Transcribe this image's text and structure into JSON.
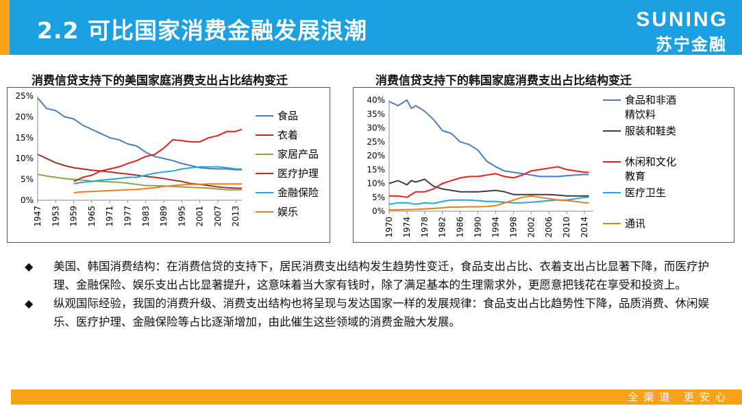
{
  "header": {
    "title": "2.2  可比国家消费金融发展浪潮"
  },
  "brand": {
    "name_en": "SUNING",
    "name_cn": "苏宁金融"
  },
  "footer": {
    "slogan": "全渠道  更安心"
  },
  "bullets": [
    "美国、韩国消费结构：在消费信贷的支持下，居民消费支出结构发生趋势性变迁，食品支出占比、衣着支出占比显著下降，而医疗护理、金融保险、娱乐支出占比显著提升，这意味着当大家有钱时，除了满足基本的生理需求外，更愿意把钱花在享受和投资上。",
    "纵观国际经验，我国的消费升级、消费支出结构也将呈现与发达国家一样的发展规律：食品支出占比趋势性下降，品质消费、休闲娱乐、医疗护理、金融保险等占比逐渐增加，由此催生这些领域的消费金融大发展。"
  ],
  "chart_data": [
    {
      "type": "line",
      "title": "消费信贷支持下的美国家庭消费支出占比结构变迁",
      "ylim": [
        0,
        25
      ],
      "y_ticks": [
        "0%",
        "5%",
        "10%",
        "15%",
        "20%",
        "25%"
      ],
      "x_ticks": [
        "1947",
        "1953",
        "1959",
        "1965",
        "1971",
        "1977",
        "1983",
        "1989",
        "1995",
        "2001",
        "2007",
        "2013"
      ],
      "series": [
        {
          "name": "食品",
          "color": "#4a7ebb",
          "x": [
            1947,
            1950,
            1953,
            1956,
            1959,
            1962,
            1965,
            1968,
            1971,
            1974,
            1977,
            1980,
            1983,
            1986,
            1989,
            1992,
            1995,
            1998,
            2001,
            2004,
            2007,
            2010,
            2013,
            2015
          ],
          "values": [
            24.5,
            22.0,
            21.5,
            20.0,
            19.5,
            18.0,
            17.0,
            16.0,
            15.0,
            14.5,
            13.5,
            13.0,
            11.5,
            10.5,
            10.0,
            9.5,
            8.8,
            8.3,
            7.8,
            7.6,
            7.5,
            7.5,
            7.3,
            7.3
          ]
        },
        {
          "name": "衣着",
          "color": "#a5312e",
          "x": [
            1947,
            1950,
            1953,
            1956,
            1959,
            1962,
            1965,
            1968,
            1971,
            1974,
            1977,
            1980,
            1983,
            1986,
            1989,
            1992,
            1995,
            1998,
            2001,
            2004,
            2007,
            2010,
            2013,
            2015
          ],
          "values": [
            11.0,
            10.0,
            9.0,
            8.3,
            7.8,
            7.5,
            7.2,
            7.0,
            6.8,
            6.5,
            6.3,
            6.0,
            5.7,
            5.5,
            5.2,
            4.8,
            4.5,
            4.0,
            3.8,
            3.5,
            3.2,
            3.0,
            2.9,
            2.9
          ]
        },
        {
          "name": "家居产品",
          "color": "#8aa547",
          "x": [
            1947,
            1950,
            1953,
            1956,
            1959,
            1962,
            1965,
            1968,
            1971,
            1974,
            1977,
            1980,
            1983,
            1986,
            1989,
            1992,
            1995,
            1998,
            2001,
            2004,
            2007,
            2010,
            2013,
            2015
          ],
          "values": [
            6.2,
            5.8,
            5.5,
            5.2,
            5.0,
            4.8,
            4.6,
            4.5,
            4.4,
            4.3,
            4.1,
            3.8,
            3.5,
            3.5,
            3.4,
            3.3,
            3.2,
            3.1,
            3.0,
            2.9,
            2.7,
            2.5,
            2.5,
            2.5
          ]
        },
        {
          "name": "医疗护理",
          "color": "#e32119",
          "x": [
            1959,
            1962,
            1965,
            1968,
            1971,
            1974,
            1977,
            1980,
            1983,
            1986,
            1989,
            1992,
            1995,
            1998,
            2001,
            2004,
            2007,
            2010,
            2013,
            2015
          ],
          "values": [
            4.5,
            5.5,
            6.0,
            7.0,
            7.5,
            8.0,
            8.8,
            9.5,
            10.5,
            11.0,
            12.5,
            14.5,
            14.3,
            14.0,
            14.0,
            15.0,
            15.5,
            16.5,
            16.5,
            17.0
          ]
        },
        {
          "name": "金融保险",
          "color": "#27a6d7",
          "x": [
            1959,
            1962,
            1965,
            1968,
            1971,
            1974,
            1977,
            1980,
            1983,
            1986,
            1989,
            1992,
            1995,
            1998,
            2001,
            2004,
            2007,
            2010,
            2013,
            2015
          ],
          "values": [
            4.0,
            4.3,
            4.5,
            4.8,
            5.0,
            5.2,
            5.5,
            5.5,
            6.0,
            6.5,
            6.8,
            7.0,
            7.5,
            7.8,
            8.0,
            8.0,
            8.0,
            7.8,
            7.5,
            7.5
          ]
        },
        {
          "name": "娱乐",
          "color": "#f07b1b",
          "x": [
            1959,
            1962,
            1965,
            1968,
            1971,
            1974,
            1977,
            1980,
            1983,
            1986,
            1989,
            1992,
            1995,
            1998,
            2001,
            2004,
            2007,
            2010,
            2013,
            2015
          ],
          "values": [
            1.8,
            2.0,
            2.1,
            2.2,
            2.3,
            2.4,
            2.5,
            2.6,
            2.8,
            3.0,
            3.3,
            3.5,
            3.7,
            3.8,
            3.8,
            3.9,
            3.9,
            3.9,
            3.9,
            3.9
          ]
        }
      ]
    },
    {
      "type": "line",
      "title": "消费信贷支持下的韩国家庭消费支出占比结构变迁",
      "ylim": [
        0,
        40
      ],
      "y_ticks": [
        "0%",
        "5%",
        "10%",
        "15%",
        "20%",
        "25%",
        "30%",
        "35%",
        "40%"
      ],
      "x_ticks": [
        "1970",
        "1974",
        "1978",
        "1982",
        "1986",
        "1990",
        "1994",
        "1998",
        "2002",
        "2006",
        "2010",
        "2014"
      ],
      "series": [
        {
          "name": "食品和非酒精饮料",
          "color": "#4a7ebb",
          "x": [
            1970,
            1972,
            1974,
            1975,
            1976,
            1978,
            1980,
            1982,
            1984,
            1986,
            1988,
            1990,
            1992,
            1994,
            1996,
            1998,
            2000,
            2002,
            2004,
            2006,
            2008,
            2010,
            2012,
            2014,
            2015
          ],
          "values": [
            39.5,
            38.0,
            40.0,
            37.0,
            38.0,
            36.0,
            33.0,
            29.0,
            28.0,
            25.0,
            24.0,
            22.0,
            18.0,
            16.0,
            14.5,
            14.0,
            13.5,
            13.0,
            12.5,
            12.5,
            12.5,
            12.8,
            13.0,
            13.2,
            13.2
          ]
        },
        {
          "name": "服装和鞋类",
          "color": "#3d3d3d",
          "x": [
            1970,
            1972,
            1974,
            1975,
            1976,
            1978,
            1980,
            1982,
            1984,
            1986,
            1988,
            1990,
            1992,
            1994,
            1996,
            1998,
            2000,
            2002,
            2004,
            2006,
            2008,
            2010,
            2012,
            2014,
            2015
          ],
          "values": [
            10.0,
            11.0,
            9.5,
            11.0,
            10.5,
            11.5,
            9.0,
            8.0,
            7.5,
            7.0,
            7.0,
            7.0,
            7.2,
            7.5,
            7.0,
            6.0,
            6.0,
            6.0,
            6.0,
            6.0,
            5.8,
            5.5,
            5.5,
            5.5,
            5.5
          ]
        },
        {
          "name": "休闲和文化教育",
          "color": "#e32119",
          "x": [
            1970,
            1972,
            1974,
            1975,
            1976,
            1978,
            1980,
            1982,
            1984,
            1986,
            1988,
            1990,
            1992,
            1994,
            1996,
            1998,
            2000,
            2002,
            2004,
            2006,
            2008,
            2010,
            2012,
            2014,
            2015
          ],
          "values": [
            5.5,
            5.5,
            5.0,
            6.0,
            7.0,
            7.0,
            8.0,
            10.0,
            11.0,
            12.0,
            12.5,
            12.5,
            13.0,
            13.5,
            12.5,
            12.0,
            13.0,
            14.5,
            15.0,
            15.5,
            16.0,
            15.0,
            14.5,
            14.0,
            14.0
          ]
        },
        {
          "name": "医疗卫生",
          "color": "#27a6d7",
          "x": [
            1970,
            1972,
            1974,
            1975,
            1976,
            1978,
            1980,
            1982,
            1984,
            1986,
            1988,
            1990,
            1992,
            1994,
            1996,
            1998,
            2000,
            2002,
            2004,
            2006,
            2008,
            2010,
            2012,
            2014,
            2015
          ],
          "values": [
            2.5,
            3.0,
            3.0,
            2.8,
            2.5,
            3.0,
            2.8,
            3.5,
            4.0,
            4.0,
            4.0,
            3.8,
            3.5,
            3.5,
            3.2,
            3.0,
            3.0,
            3.2,
            3.5,
            3.8,
            4.0,
            4.0,
            4.5,
            5.0,
            5.0
          ]
        },
        {
          "name": "通讯",
          "color": "#f07b1b",
          "x": [
            1970,
            1972,
            1974,
            1975,
            1976,
            1978,
            1980,
            1982,
            1984,
            1986,
            1988,
            1990,
            1992,
            1994,
            1996,
            1998,
            2000,
            2002,
            2004,
            2006,
            2008,
            2010,
            2012,
            2014,
            2015
          ],
          "values": [
            0.5,
            0.5,
            0.6,
            0.6,
            0.7,
            0.8,
            1.0,
            1.2,
            1.5,
            1.5,
            1.6,
            1.6,
            1.7,
            2.0,
            3.0,
            4.0,
            5.0,
            5.5,
            5.0,
            4.5,
            4.0,
            3.8,
            3.5,
            3.0,
            3.0
          ]
        }
      ]
    }
  ]
}
